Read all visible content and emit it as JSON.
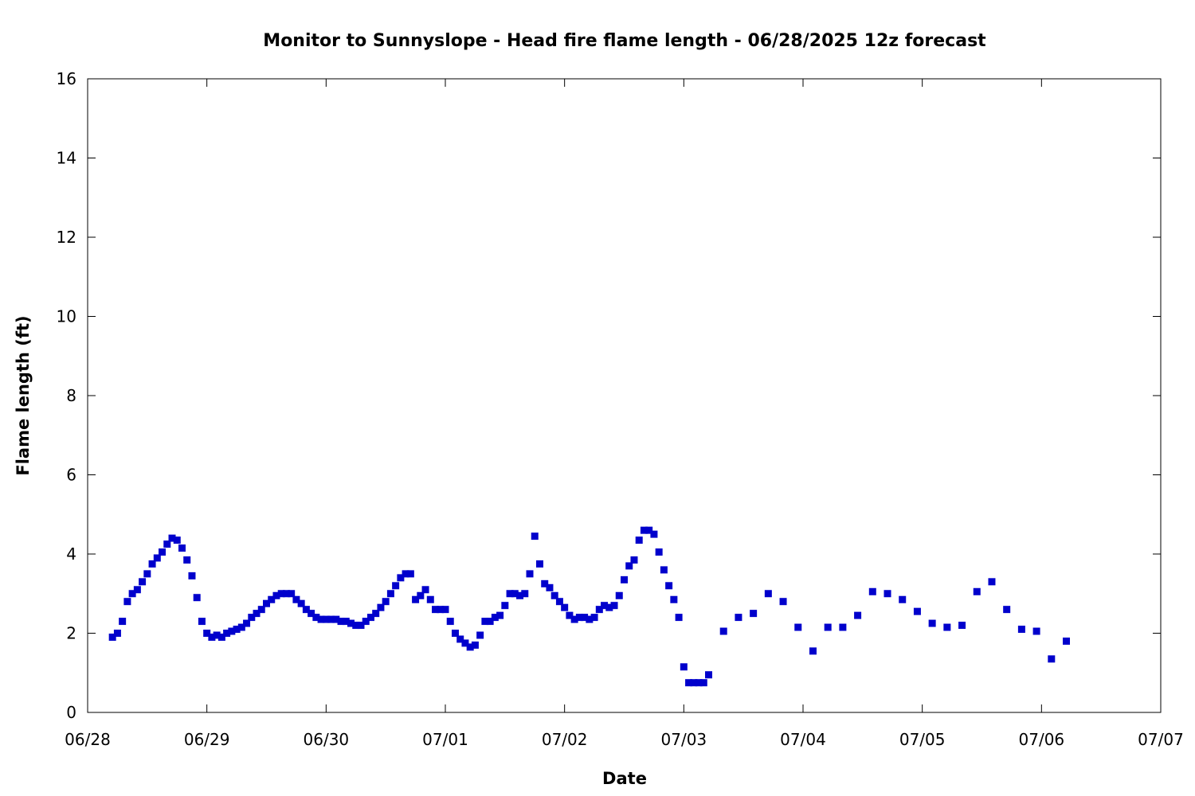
{
  "chart_data": {
    "type": "scatter",
    "title": "Monitor to Sunnyslope - Head fire flame length - 06/28/2025 12z forecast",
    "xlabel": "Date",
    "ylabel": "Flame length (ft)",
    "xlim": [
      "2025-06-28T00:00",
      "2025-07-07T00:00"
    ],
    "ylim": [
      0,
      16
    ],
    "x_ticks": [
      "06/28",
      "06/29",
      "06/30",
      "07/01",
      "07/02",
      "07/03",
      "07/04",
      "07/05",
      "07/06",
      "07/07"
    ],
    "y_ticks": [
      0,
      2,
      4,
      6,
      8,
      10,
      12,
      14,
      16
    ],
    "grid": false,
    "legend": "none",
    "marker": "square",
    "color": "#0000cc",
    "series": [
      {
        "x": [
          "2025-06-28T05:00",
          "2025-06-28T06:00",
          "2025-06-28T07:00",
          "2025-06-28T08:00",
          "2025-06-28T09:00",
          "2025-06-28T10:00",
          "2025-06-28T11:00",
          "2025-06-28T12:00",
          "2025-06-28T13:00",
          "2025-06-28T14:00",
          "2025-06-28T15:00",
          "2025-06-28T16:00",
          "2025-06-28T17:00",
          "2025-06-28T18:00",
          "2025-06-28T19:00",
          "2025-06-28T20:00",
          "2025-06-28T21:00",
          "2025-06-28T22:00",
          "2025-06-28T23:00",
          "2025-06-29T00:00",
          "2025-06-29T01:00",
          "2025-06-29T02:00",
          "2025-06-29T03:00",
          "2025-06-29T04:00",
          "2025-06-29T05:00",
          "2025-06-29T06:00",
          "2025-06-29T07:00",
          "2025-06-29T08:00",
          "2025-06-29T09:00",
          "2025-06-29T10:00",
          "2025-06-29T11:00",
          "2025-06-29T12:00",
          "2025-06-29T13:00",
          "2025-06-29T14:00",
          "2025-06-29T15:00",
          "2025-06-29T16:00",
          "2025-06-29T17:00",
          "2025-06-29T18:00",
          "2025-06-29T19:00",
          "2025-06-29T20:00",
          "2025-06-29T21:00",
          "2025-06-29T22:00",
          "2025-06-29T23:00",
          "2025-06-30T00:00",
          "2025-06-30T01:00",
          "2025-06-30T02:00",
          "2025-06-30T03:00",
          "2025-06-30T04:00",
          "2025-06-30T05:00",
          "2025-06-30T06:00",
          "2025-06-30T07:00",
          "2025-06-30T08:00",
          "2025-06-30T09:00",
          "2025-06-30T10:00",
          "2025-06-30T11:00",
          "2025-06-30T12:00",
          "2025-06-30T13:00",
          "2025-06-30T14:00",
          "2025-06-30T15:00",
          "2025-06-30T16:00",
          "2025-06-30T17:00",
          "2025-06-30T18:00",
          "2025-06-30T19:00",
          "2025-06-30T20:00",
          "2025-06-30T21:00",
          "2025-06-30T22:00",
          "2025-06-30T23:00",
          "2025-07-01T00:00",
          "2025-07-01T01:00",
          "2025-07-01T02:00",
          "2025-07-01T03:00",
          "2025-07-01T04:00",
          "2025-07-01T05:00",
          "2025-07-01T06:00",
          "2025-07-01T07:00",
          "2025-07-01T08:00",
          "2025-07-01T09:00",
          "2025-07-01T10:00",
          "2025-07-01T11:00",
          "2025-07-01T12:00",
          "2025-07-01T13:00",
          "2025-07-01T14:00",
          "2025-07-01T15:00",
          "2025-07-01T16:00",
          "2025-07-01T17:00",
          "2025-07-01T18:00",
          "2025-07-01T19:00",
          "2025-07-01T20:00",
          "2025-07-01T21:00",
          "2025-07-01T22:00",
          "2025-07-01T23:00",
          "2025-07-02T00:00",
          "2025-07-02T01:00",
          "2025-07-02T02:00",
          "2025-07-02T03:00",
          "2025-07-02T04:00",
          "2025-07-02T05:00",
          "2025-07-02T06:00",
          "2025-07-02T07:00",
          "2025-07-02T08:00",
          "2025-07-02T09:00",
          "2025-07-02T10:00",
          "2025-07-02T11:00",
          "2025-07-02T12:00",
          "2025-07-02T13:00",
          "2025-07-02T14:00",
          "2025-07-02T15:00",
          "2025-07-02T16:00",
          "2025-07-02T17:00",
          "2025-07-02T18:00",
          "2025-07-02T19:00",
          "2025-07-02T20:00",
          "2025-07-02T21:00",
          "2025-07-02T22:00",
          "2025-07-02T23:00",
          "2025-07-03T00:00",
          "2025-07-03T01:00",
          "2025-07-03T02:00",
          "2025-07-03T03:00",
          "2025-07-03T04:00",
          "2025-07-03T05:00",
          "2025-07-03T08:00",
          "2025-07-03T11:00",
          "2025-07-03T14:00",
          "2025-07-03T17:00",
          "2025-07-03T20:00",
          "2025-07-03T23:00",
          "2025-07-04T02:00",
          "2025-07-04T05:00",
          "2025-07-04T08:00",
          "2025-07-04T11:00",
          "2025-07-04T14:00",
          "2025-07-04T17:00",
          "2025-07-04T20:00",
          "2025-07-04T23:00",
          "2025-07-05T02:00",
          "2025-07-05T05:00",
          "2025-07-05T08:00",
          "2025-07-05T11:00",
          "2025-07-05T14:00",
          "2025-07-05T17:00",
          "2025-07-05T20:00",
          "2025-07-05T23:00",
          "2025-07-06T02:00",
          "2025-07-06T05:00"
        ],
        "y": [
          1.9,
          2.0,
          2.3,
          2.8,
          3.0,
          3.1,
          3.3,
          3.5,
          3.75,
          3.9,
          4.05,
          4.25,
          4.4,
          4.35,
          4.15,
          3.85,
          3.45,
          2.9,
          2.3,
          2.0,
          1.9,
          1.95,
          1.9,
          2.0,
          2.05,
          2.1,
          2.15,
          2.25,
          2.4,
          2.5,
          2.6,
          2.75,
          2.85,
          2.95,
          3.0,
          3.0,
          3.0,
          2.85,
          2.75,
          2.6,
          2.5,
          2.4,
          2.35,
          2.35,
          2.35,
          2.35,
          2.3,
          2.3,
          2.25,
          2.2,
          2.2,
          2.3,
          2.4,
          2.5,
          2.65,
          2.8,
          3.0,
          3.2,
          3.4,
          3.5,
          3.5,
          2.85,
          2.95,
          3.1,
          2.85,
          2.6,
          2.6,
          2.6,
          2.3,
          2.0,
          1.85,
          1.75,
          1.65,
          1.7,
          1.95,
          2.3,
          2.3,
          2.4,
          2.45,
          2.7,
          3.0,
          3.0,
          2.95,
          3.0,
          3.5,
          4.45,
          3.75,
          3.25,
          3.15,
          2.95,
          2.8,
          2.65,
          2.45,
          2.35,
          2.4,
          2.4,
          2.35,
          2.4,
          2.6,
          2.7,
          2.65,
          2.7,
          2.95,
          3.35,
          3.7,
          3.85,
          4.35,
          4.6,
          4.6,
          4.5,
          4.05,
          3.6,
          3.2,
          2.85,
          2.4,
          1.15,
          0.75,
          0.75,
          0.75,
          0.75,
          0.95,
          2.05,
          2.4,
          2.5,
          3.0,
          2.8,
          2.15,
          1.55,
          2.15,
          2.15,
          2.45,
          3.05,
          3.0,
          2.85,
          2.55,
          2.25,
          2.15,
          2.2,
          3.05,
          3.3,
          2.6,
          2.1,
          2.05,
          1.35,
          1.8
        ]
      }
    ]
  }
}
